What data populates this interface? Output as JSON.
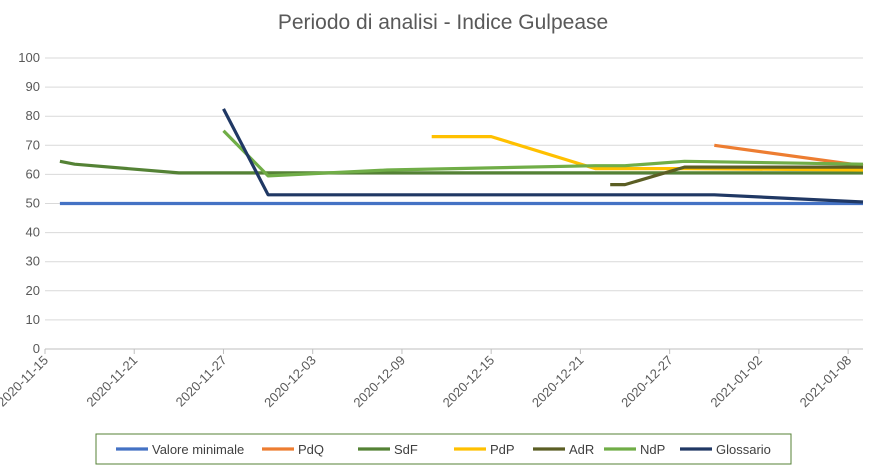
{
  "chart_data": {
    "type": "line",
    "title": "Periodo di analisi - Indice Gulpease",
    "xlabel": "",
    "ylabel": "",
    "ylim": [
      0,
      100
    ],
    "yticks": [
      0,
      10,
      20,
      30,
      40,
      50,
      60,
      70,
      80,
      90,
      100
    ],
    "xlim": [
      "2020-11-15",
      "2021-01-09"
    ],
    "xticks": [
      "2020-11-15",
      "2020-11-21",
      "2020-11-27",
      "2020-12-03",
      "2020-12-09",
      "2020-12-15",
      "2020-12-21",
      "2020-12-27",
      "2021-01-02",
      "2021-01-08"
    ],
    "grid": "horizontal",
    "legend_position": "bottom",
    "series": [
      {
        "name": "Valore minimale",
        "color": "#4472C4",
        "points": [
          [
            "2020-11-16",
            50
          ],
          [
            "2021-01-09",
            50
          ]
        ]
      },
      {
        "name": "PdQ",
        "color": "#ED7D31",
        "points": [
          [
            "2020-12-30",
            70
          ],
          [
            "2021-01-09",
            63
          ]
        ]
      },
      {
        "name": "SdF",
        "color": "#548235",
        "points": [
          [
            "2020-11-16",
            64.5
          ],
          [
            "2020-11-17",
            63.5
          ],
          [
            "2020-11-24",
            60.5
          ],
          [
            "2020-11-29",
            60.5
          ],
          [
            "2020-12-08",
            60.5
          ],
          [
            "2020-12-22",
            60.5
          ],
          [
            "2021-01-09",
            60.5
          ]
        ]
      },
      {
        "name": "PdP",
        "color": "#FFC000",
        "points": [
          [
            "2020-12-11",
            73
          ],
          [
            "2020-12-15",
            73
          ],
          [
            "2020-12-22",
            62
          ],
          [
            "2020-12-28",
            62
          ],
          [
            "2021-01-09",
            61.5
          ]
        ]
      },
      {
        "name": "AdR",
        "color": "#5B5E24",
        "points": [
          [
            "2020-12-23",
            56.5
          ],
          [
            "2020-12-24",
            56.5
          ],
          [
            "2020-12-28",
            62.5
          ],
          [
            "2021-01-09",
            62.5
          ]
        ]
      },
      {
        "name": "NdP",
        "color": "#70AD47",
        "points": [
          [
            "2020-11-27",
            75
          ],
          [
            "2020-11-30",
            59.5
          ],
          [
            "2020-12-08",
            61.5
          ],
          [
            "2020-12-22",
            63
          ],
          [
            "2020-12-24",
            63
          ],
          [
            "2020-12-28",
            64.5
          ],
          [
            "2021-01-09",
            63.5
          ]
        ]
      },
      {
        "name": "Glossario",
        "color": "#203864",
        "points": [
          [
            "2020-11-27",
            82.5
          ],
          [
            "2020-11-30",
            53
          ],
          [
            "2020-12-12",
            53
          ],
          [
            "2020-12-24",
            53
          ],
          [
            "2020-12-30",
            53
          ],
          [
            "2021-01-09",
            50.5
          ]
        ]
      }
    ]
  }
}
